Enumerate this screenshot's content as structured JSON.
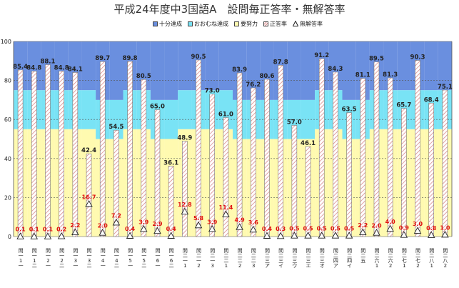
{
  "chart_data": {
    "type": "bar",
    "title": "平成24年度中3国語A　設問毎正答率・無解答率",
    "ylim": [
      0,
      100
    ],
    "yticks": [
      0,
      20,
      40,
      60,
      80,
      100
    ],
    "grid": true,
    "legend_position": "top-center",
    "legend": [
      {
        "name": "十分達成",
        "color": "#6a8fdf"
      },
      {
        "name": "おおむね達成",
        "color": "#79e3f5"
      },
      {
        "name": "要努力",
        "color": "#fffab0"
      },
      {
        "name": "正答率",
        "color": "#e8a0a0"
      },
      {
        "name": "無解答率",
        "color": "#333333"
      }
    ],
    "categories": [
      "問\n一\n1\n一",
      "問\n一\n1\n二",
      "問\n一\n2\n一",
      "問\n一\n2\n二",
      "問\n一\n3\n一",
      "問\n一\n3\n二",
      "問\n一\n4\n一",
      "問\n一\n4\n二",
      "問\n一\n5\n一",
      "問\n一\n5\n二",
      "問\n一\n6\n一",
      "問\n一\n6\n二",
      "問\n二\n一\n1",
      "問\n二\n一\n2",
      "問\n二\n一\n3",
      "問\n二\n二\n1",
      "問\n二\n二\n2",
      "問\n二\n二\n3",
      "問\n二\n三\nア",
      "問\n二\n三\nイ",
      "問\n二\n三\nウ",
      "問\n二\n三\nエ",
      "問\n二\n三\nオ",
      "問\n二\n四\nア",
      "問\n二\n四\nイ",
      "問\n二\n五",
      "問\n二\n六\n1",
      "問\n二\n六\n2",
      "問\n二\n七\n1",
      "問\n二\n七\n2",
      "問\n二\n八\n1",
      "問\n二\n八\n2"
    ],
    "band_lower": [
      55,
      55,
      55,
      55,
      55,
      55,
      50,
      50,
      55,
      55,
      50,
      50,
      55,
      55,
      55,
      55,
      50,
      50,
      50,
      50,
      50,
      50,
      55,
      55,
      50,
      50,
      55,
      55,
      55,
      55,
      55,
      55
    ],
    "band_upper": [
      75,
      75,
      75,
      75,
      75,
      75,
      70,
      70,
      75,
      75,
      70,
      70,
      75,
      75,
      75,
      75,
      70,
      70,
      70,
      70,
      70,
      70,
      75,
      75,
      70,
      70,
      75,
      75,
      75,
      75,
      75,
      75
    ],
    "series": [
      {
        "name": "正答率",
        "values": [
          85.4,
          84.8,
          88.1,
          84.8,
          84.1,
          42.4,
          89.7,
          54.5,
          89.8,
          80.5,
          65.0,
          36.1,
          48.9,
          90.5,
          73.0,
          61.0,
          83.9,
          76.2,
          80.6,
          87.8,
          57.0,
          46.1,
          91.2,
          84.3,
          63.5,
          81.1,
          89.5,
          81.3,
          65.7,
          90.3,
          68.4,
          75.1
        ]
      },
      {
        "name": "無解答率",
        "values": [
          0.1,
          0.1,
          0.1,
          0.2,
          2.2,
          16.7,
          2.0,
          7.2,
          0.4,
          3.9,
          2.9,
          0.4,
          12.8,
          5.8,
          3.9,
          11.4,
          4.9,
          3.6,
          0.4,
          0.3,
          0.5,
          0.5,
          0.5,
          0.5,
          0.5,
          2.2,
          2.0,
          4.0,
          0.9,
          3.0,
          0.8,
          1.0
        ]
      }
    ]
  }
}
